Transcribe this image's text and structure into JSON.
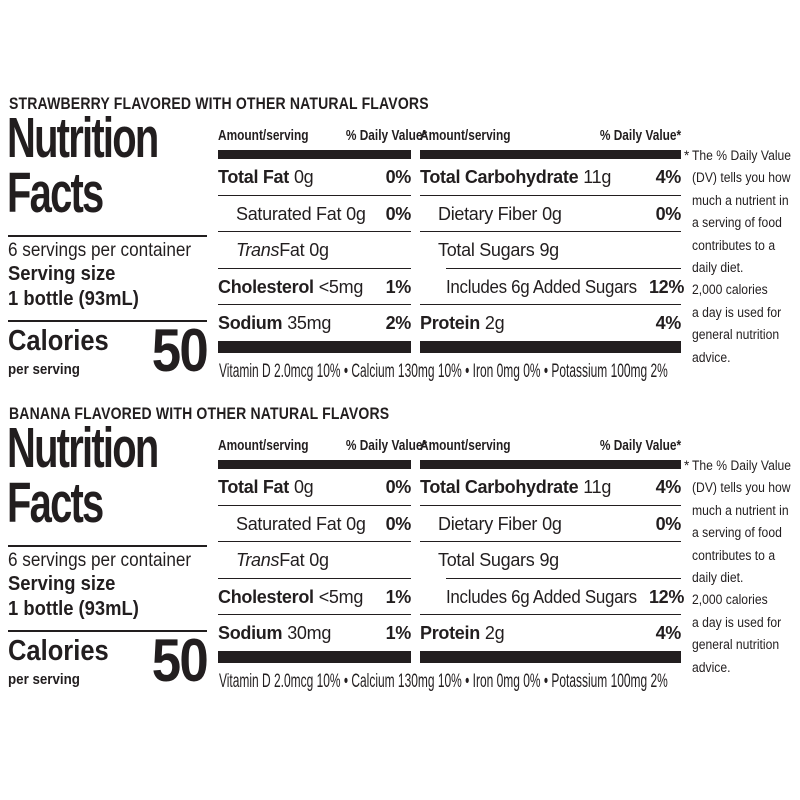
{
  "colors": {
    "ink": "#221e1f",
    "background": "#ffffff"
  },
  "panels": [
    {
      "flavor_header": "STRAWBERRY FLAVORED WITH OTHER NATURAL FLAVORS",
      "title_line1": "Nutrition",
      "title_line2": "Facts",
      "servings_per_container": "6 servings per container",
      "serving_size_label": "Serving size",
      "serving_size_value": "1 bottle (93mL)",
      "calories_label": "Calories",
      "calories_sublabel": "per serving",
      "calories_value": "50",
      "amount_header": "Amount/serving",
      "dv_header": "% Daily Value*",
      "mid_rows": [
        {
          "name": "Total Fat",
          "amount": "0g",
          "dv": "0%"
        },
        {
          "name": "Saturated Fat",
          "amount": "0g",
          "dv": "0%"
        },
        {
          "name_italic": "Trans",
          "name_rest": " Fat",
          "amount": "0g",
          "dv": ""
        },
        {
          "name": "Cholesterol",
          "amount": "<5mg",
          "dv": "1%"
        },
        {
          "name": "Sodium",
          "amount": "35mg",
          "dv": "2%"
        }
      ],
      "right_rows": [
        {
          "name": "Total Carbohydrate",
          "amount": "11g",
          "dv": "4%"
        },
        {
          "name": "Dietary Fiber",
          "amount": "0g",
          "dv": "0%"
        },
        {
          "name": "Total Sugars",
          "amount": "9g",
          "dv": ""
        },
        {
          "name": "Includes 6g Added Sugars",
          "amount": "",
          "dv": "12%"
        },
        {
          "name": "Protein",
          "amount": "2g",
          "dv": "4%"
        }
      ],
      "micronutrients": "Vitamin D 2.0mcg 10% • Calcium 130mg 10% • Iron 0mg 0% • Potassium 100mg 2%",
      "footnote_asterisk": "*",
      "footnote_lines": [
        "The % Daily Value",
        "(DV) tells you how",
        "much a nutrient in",
        "a serving of food",
        "contributes to a",
        "daily diet.",
        "2,000 calories",
        "a day is used for",
        "general nutrition",
        "advice."
      ]
    },
    {
      "flavor_header": "BANANA FLAVORED WITH OTHER NATURAL FLAVORS",
      "title_line1": "Nutrition",
      "title_line2": "Facts",
      "servings_per_container": "6 servings per container",
      "serving_size_label": "Serving size",
      "serving_size_value": "1 bottle (93mL)",
      "calories_label": "Calories",
      "calories_sublabel": "per serving",
      "calories_value": "50",
      "amount_header": "Amount/serving",
      "dv_header": "% Daily Value*",
      "mid_rows": [
        {
          "name": "Total Fat",
          "amount": "0g",
          "dv": "0%"
        },
        {
          "name": "Saturated Fat",
          "amount": "0g",
          "dv": "0%"
        },
        {
          "name_italic": "Trans",
          "name_rest": " Fat",
          "amount": "0g",
          "dv": ""
        },
        {
          "name": "Cholesterol",
          "amount": "<5mg",
          "dv": "1%"
        },
        {
          "name": "Sodium",
          "amount": "30mg",
          "dv": "1%"
        }
      ],
      "right_rows": [
        {
          "name": "Total Carbohydrate",
          "amount": "11g",
          "dv": "4%"
        },
        {
          "name": "Dietary Fiber",
          "amount": "0g",
          "dv": "0%"
        },
        {
          "name": "Total Sugars",
          "amount": "9g",
          "dv": ""
        },
        {
          "name": "Includes 6g Added Sugars",
          "amount": "",
          "dv": "12%"
        },
        {
          "name": "Protein",
          "amount": "2g",
          "dv": "4%"
        }
      ],
      "micronutrients": "Vitamin D 2.0mcg 10% • Calcium 130mg 10% • Iron 0mg 0% • Potassium 100mg 2%",
      "footnote_asterisk": "*",
      "footnote_lines": [
        "The % Daily Value",
        "(DV) tells you how",
        "much a nutrient in",
        "a serving of food",
        "contributes to a",
        "daily diet.",
        "2,000 calories",
        "a day is used for",
        "general nutrition",
        "advice."
      ]
    }
  ]
}
